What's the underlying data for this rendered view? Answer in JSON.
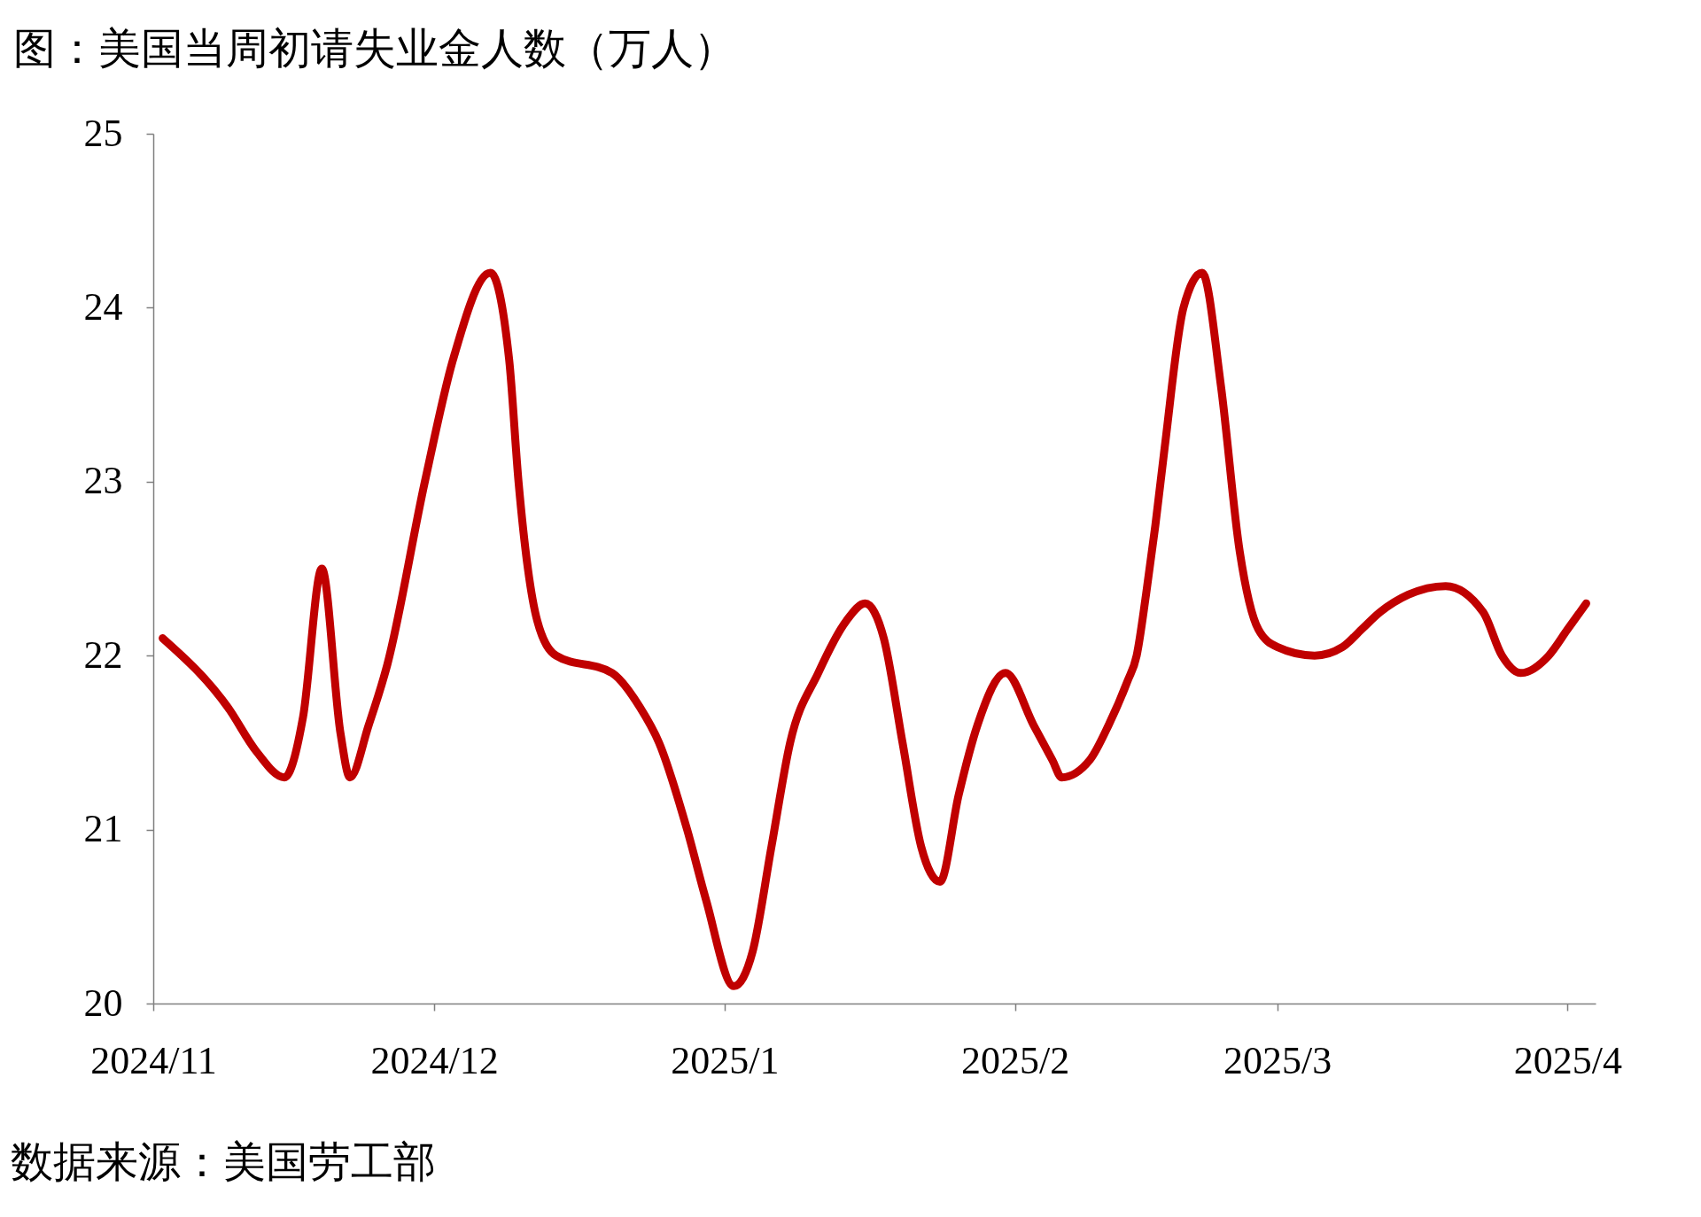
{
  "chart_data": {
    "type": "line",
    "title": "图：美国当周初请失业金人数（万人）",
    "annotations": [
      "数据来源：美国劳工部"
    ],
    "x": [
      "2024-11-02",
      "2024-11-09",
      "2024-11-12",
      "2024-11-15",
      "2024-11-17",
      "2024-11-19",
      "2024-11-21",
      "2024-11-22",
      "2024-11-24",
      "2024-11-26",
      "2024-11-30",
      "2024-12-03",
      "2024-12-07",
      "2024-12-09",
      "2024-12-10",
      "2024-12-11",
      "2024-12-12",
      "2024-12-14",
      "2024-12-20",
      "2024-12-23",
      "2024-12-25",
      "2024-12-28",
      "2024-12-30",
      "2025-01-02",
      "2025-01-04",
      "2025-01-06",
      "2025-01-08",
      "2025-01-11",
      "2025-01-14",
      "2025-01-16",
      "2025-01-18",
      "2025-01-20",
      "2025-01-22",
      "2025-01-24",
      "2025-01-26",
      "2025-01-28",
      "2025-01-31",
      "2025-02-03",
      "2025-02-05",
      "2025-02-06",
      "2025-02-09",
      "2025-02-11",
      "2025-02-13",
      "2025-02-14",
      "2025-02-15",
      "2025-02-16",
      "2025-02-17",
      "2025-02-19",
      "2025-02-21",
      "2025-02-23",
      "2025-02-25",
      "2025-02-27",
      "2025-03-01",
      "2025-03-05",
      "2025-03-08",
      "2025-03-10",
      "2025-03-12",
      "2025-03-15",
      "2025-03-19",
      "2025-03-23",
      "2025-03-25",
      "2025-03-27",
      "2025-03-30",
      "2025-04-01",
      "2025-04-03"
    ],
    "series": [
      {
        "color": "#c00000",
        "values": [
          22.1,
          21.7,
          21.45,
          21.3,
          21.65,
          22.5,
          21.55,
          21.3,
          21.6,
          21.95,
          23.0,
          23.7,
          24.2,
          23.7,
          23.0,
          22.5,
          22.2,
          22.0,
          21.9,
          21.7,
          21.5,
          21.0,
          20.6,
          20.1,
          20.3,
          20.9,
          21.5,
          21.9,
          22.2,
          22.3,
          22.1,
          21.5,
          20.9,
          20.7,
          21.2,
          21.6,
          21.9,
          21.6,
          21.4,
          21.3,
          21.4,
          21.6,
          21.85,
          22.0,
          22.35,
          22.75,
          23.2,
          24.0,
          24.2,
          23.55,
          22.6,
          22.15,
          22.05,
          22.0,
          22.05,
          22.15,
          22.25,
          22.35,
          22.4,
          22.25,
          22.0,
          21.9,
          22.0,
          22.15,
          22.3
        ]
      }
    ],
    "xlim": [
      "2024-11-01",
      "2025-04-04"
    ],
    "xticks": [
      {
        "value": "2024-11-01",
        "label": "2024/11"
      },
      {
        "value": "2024-12-01",
        "label": "2024/12"
      },
      {
        "value": "2025-01-01",
        "label": "2025/1"
      },
      {
        "value": "2025-02-01",
        "label": "2025/2"
      },
      {
        "value": "2025-03-01",
        "label": "2025/3"
      },
      {
        "value": "2025-04-01",
        "label": "2025/4"
      }
    ],
    "ylim": [
      20,
      25
    ],
    "yticks": [
      20,
      21,
      22,
      23,
      24,
      25
    ],
    "line_style": "solid"
  }
}
